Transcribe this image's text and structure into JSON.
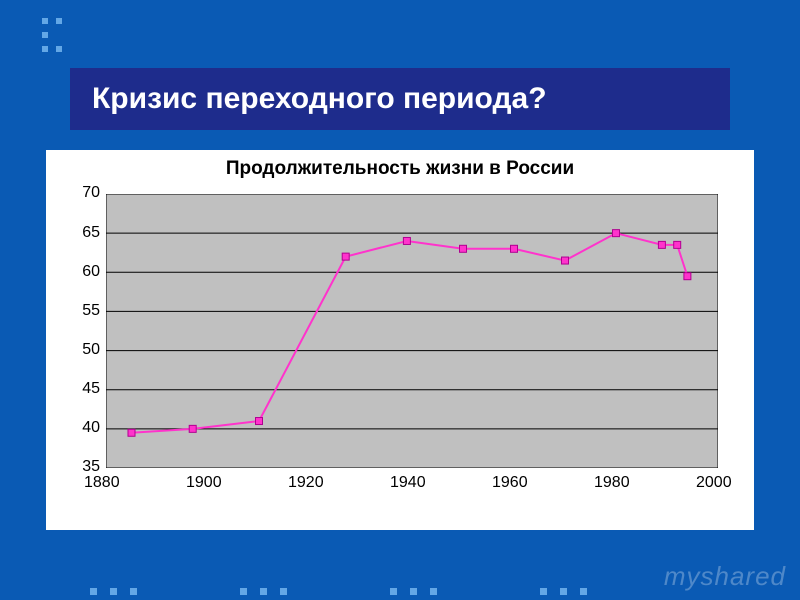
{
  "slide": {
    "background_color": "#0a5ab4",
    "title_bar_color": "#1e2c8c",
    "dot_color": "#63a7e6",
    "title": "Кризис переходного периода?",
    "title_fontsize": 30
  },
  "chart": {
    "type": "line",
    "title": "Продолжительность жизни в России",
    "title_fontsize": 19,
    "background_color": "#c0c0c0",
    "grid_color": "#000000",
    "line_color": "#ff33cc",
    "marker_color": "#ff33cc",
    "marker_border": "#b00090",
    "marker_size": 7,
    "line_width": 2,
    "xlim": [
      1880,
      2000
    ],
    "ylim": [
      35,
      70
    ],
    "xtick_step": 20,
    "ytick_step": 5,
    "axis_fontsize": 16,
    "x": [
      1885,
      1897,
      1910,
      1927,
      1939,
      1950,
      1960,
      1970,
      1980,
      1989,
      1992,
      1994
    ],
    "y": [
      39.5,
      40,
      41,
      62,
      64,
      63,
      63,
      61.5,
      65,
      63.5,
      63.5,
      59.5
    ]
  },
  "watermark": "myshared"
}
